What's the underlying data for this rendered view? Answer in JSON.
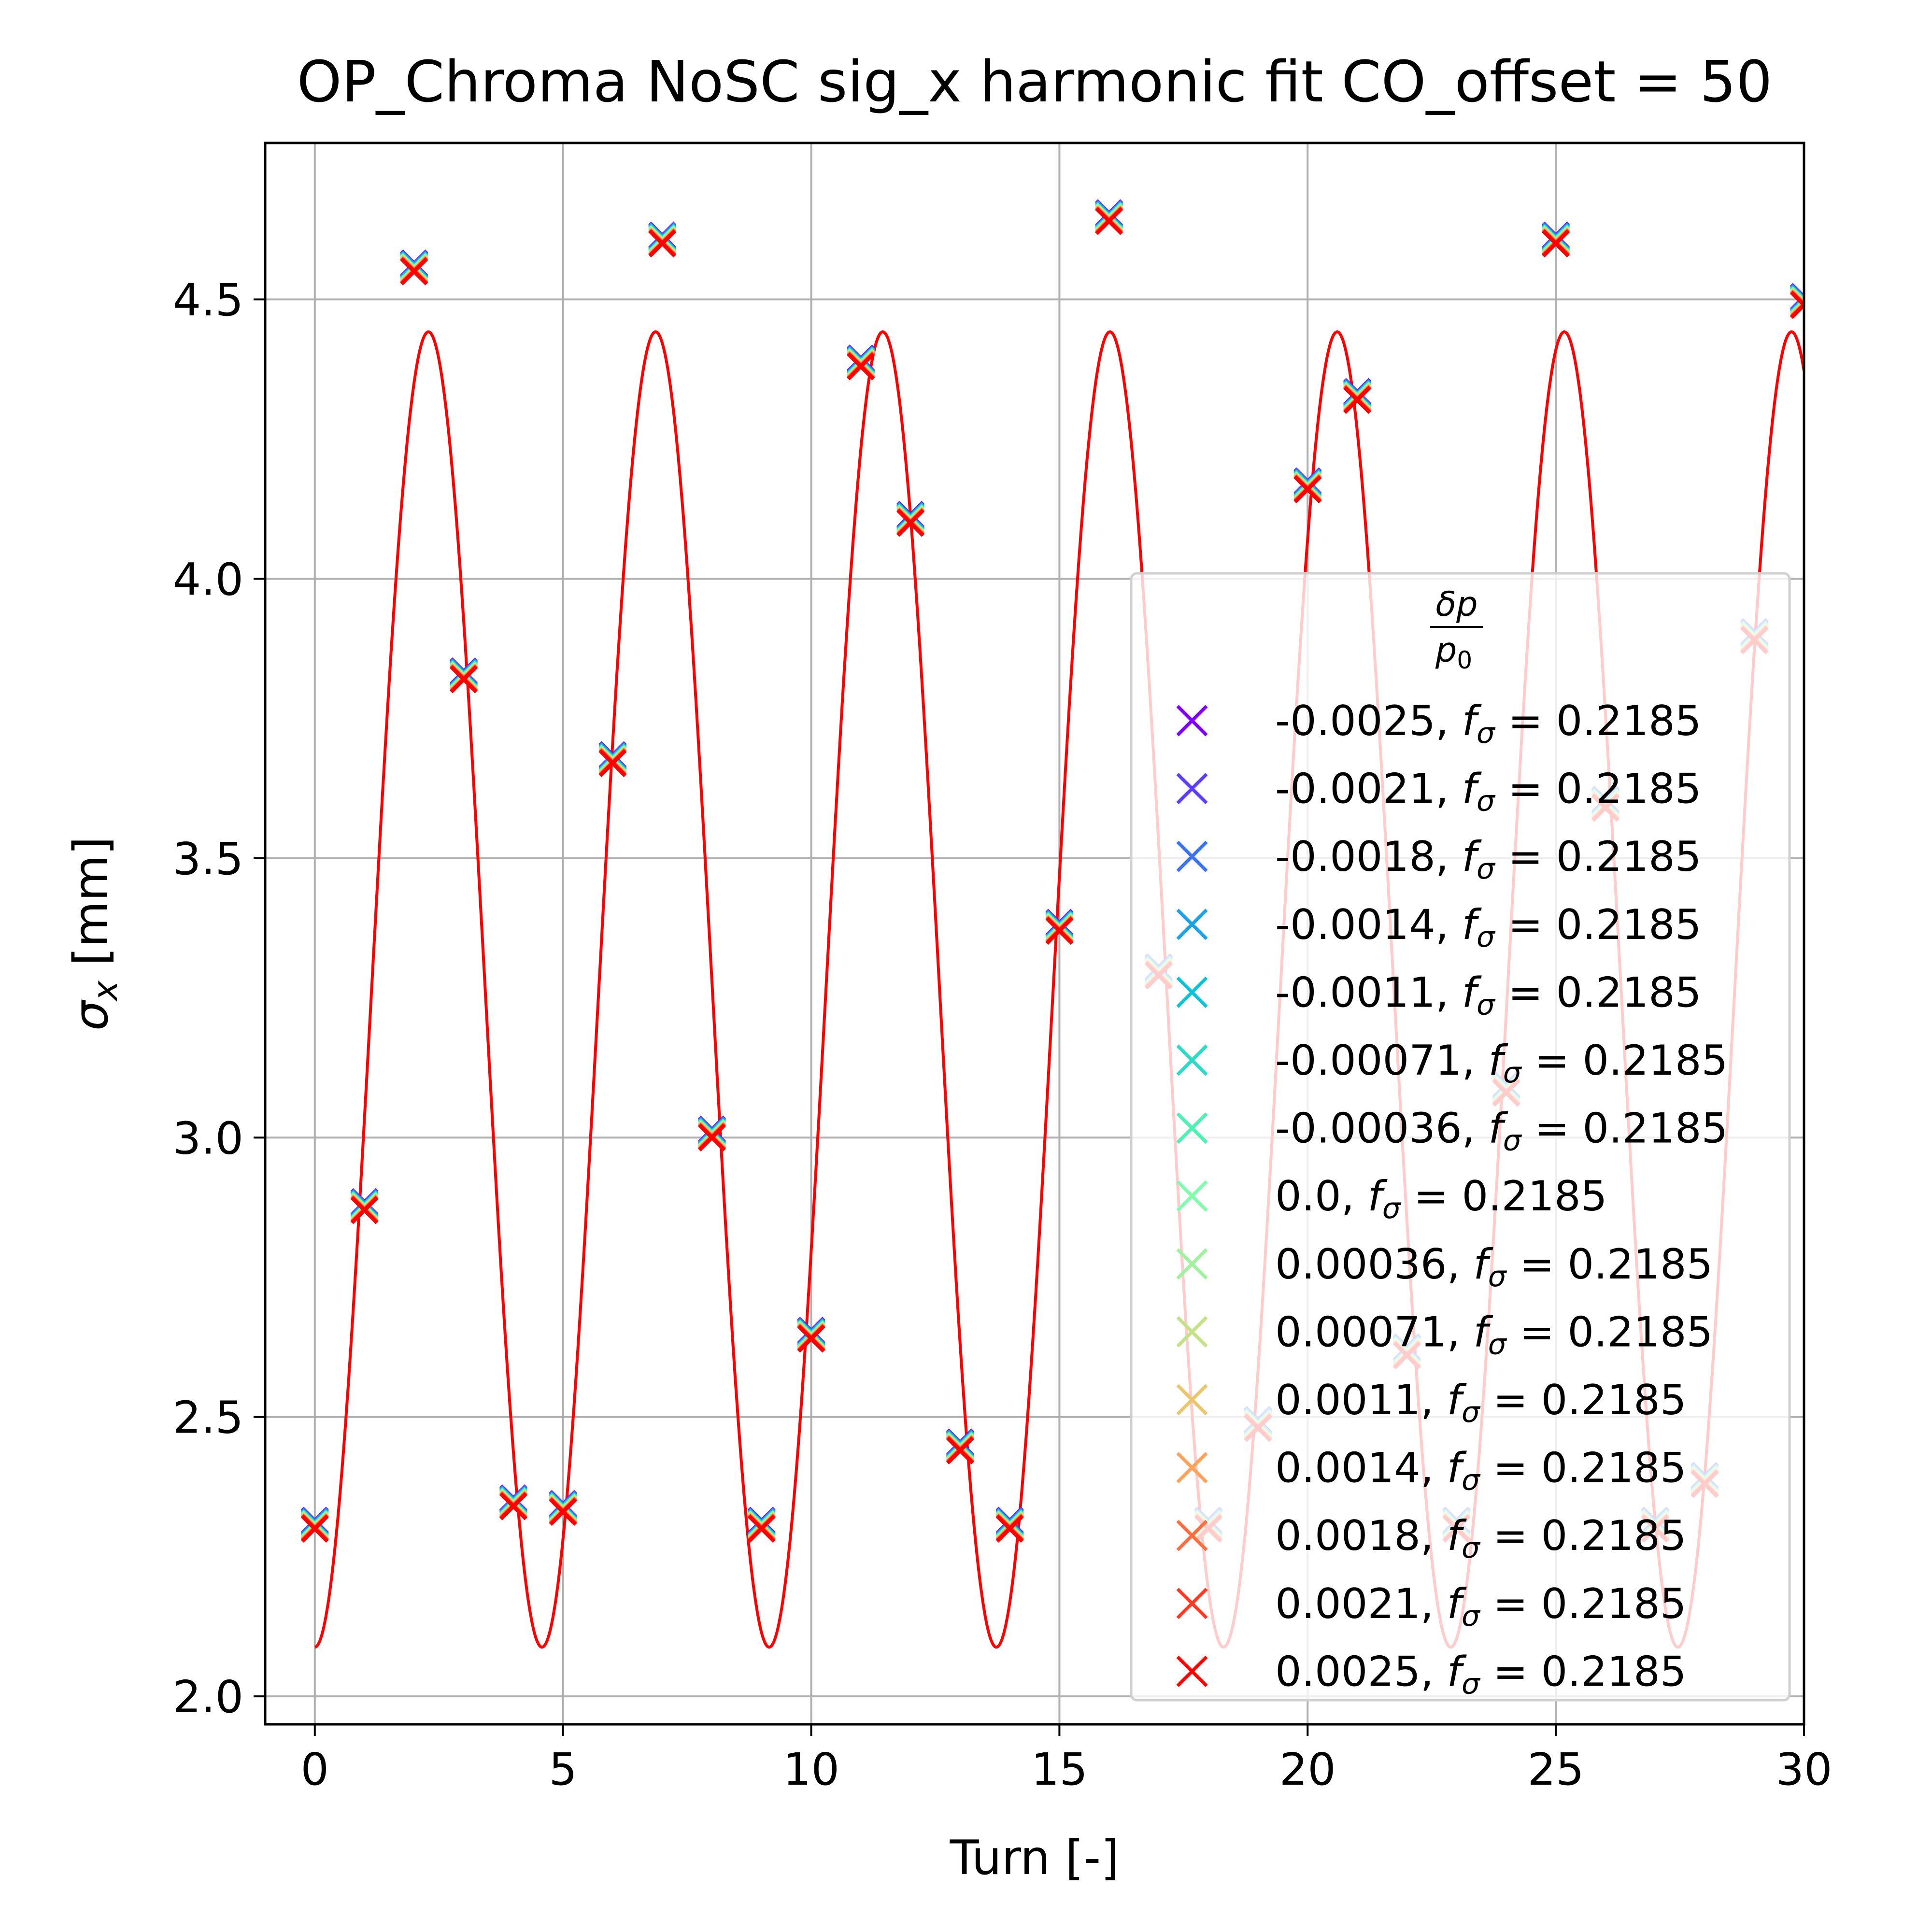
{
  "chart_data": {
    "type": "scatter",
    "title": "OP_Chroma NoSC sig_x harmonic fit CO_offset = 50",
    "xlabel": "Turn [-]",
    "ylabel_main": "σ",
    "ylabel_sub": "x",
    "ylabel_unit": " [mm]",
    "xlim": [
      -1,
      30
    ],
    "ylim": [
      1.95,
      4.78
    ],
    "xticks": [
      0,
      5,
      10,
      15,
      20,
      25,
      30
    ],
    "xtick_labels": [
      "0",
      "5",
      "10",
      "15",
      "20",
      "25",
      "30"
    ],
    "yticks": [
      2.0,
      2.5,
      3.0,
      3.5,
      4.0,
      4.5
    ],
    "ytick_labels": [
      "2.0",
      "2.5",
      "3.0",
      "3.5",
      "4.0",
      "4.5"
    ],
    "grid": true,
    "legend": {
      "placement": "lower-right",
      "title_num": "δp",
      "title_den_main": "p",
      "title_den_sub": "0",
      "f_main": "f",
      "f_sub": "σ"
    },
    "x": [
      0,
      1,
      2,
      3,
      4,
      5,
      6,
      7,
      8,
      9,
      10,
      11,
      12,
      13,
      14,
      15,
      16,
      17,
      18,
      19,
      20,
      21,
      22,
      23,
      24,
      25,
      26,
      27,
      28,
      29,
      30
    ],
    "y": [
      2.3,
      2.87,
      4.55,
      3.82,
      2.34,
      2.33,
      3.67,
      4.6,
      3.0,
      2.3,
      2.64,
      4.38,
      4.1,
      2.44,
      2.3,
      3.37,
      4.64,
      3.29,
      2.3,
      2.48,
      4.16,
      4.32,
      2.61,
      2.3,
      3.08,
      4.6,
      3.59,
      2.3,
      2.38,
      3.89,
      4.49
    ],
    "series": [
      {
        "name": "-0.0025",
        "f_value": "0.2185",
        "color": "#8000ff"
      },
      {
        "name": "-0.0021",
        "f_value": "0.2185",
        "color": "#5a3cfc"
      },
      {
        "name": "-0.0018",
        "f_value": "0.2185",
        "color": "#3a74f3"
      },
      {
        "name": "-0.0014",
        "f_value": "0.2185",
        "color": "#1ba1e6"
      },
      {
        "name": "-0.0011",
        "f_value": "0.2185",
        "color": "#0dc3d8"
      },
      {
        "name": "-0.00071",
        "f_value": "0.2185",
        "color": "#2adcc8"
      },
      {
        "name": "-0.00036",
        "f_value": "0.2185",
        "color": "#4cf2b4"
      },
      {
        "name": "0.0",
        "f_value": "0.2185",
        "color": "#7ffcac"
      },
      {
        "name": "0.00036",
        "f_value": "0.2185",
        "color": "#9ff39c"
      },
      {
        "name": "0.00071",
        "f_value": "0.2185",
        "color": "#c4e388"
      },
      {
        "name": "0.0011",
        "f_value": "0.2185",
        "color": "#ecc66f"
      },
      {
        "name": "0.0014",
        "f_value": "0.2185",
        "color": "#ffa35a"
      },
      {
        "name": "0.0018",
        "f_value": "0.2185",
        "color": "#ff6e41"
      },
      {
        "name": "0.0021",
        "f_value": "0.2185",
        "color": "#ff3a24"
      },
      {
        "name": "0.0025",
        "f_value": "0.2185",
        "color": "#ff0000"
      }
    ],
    "fit": {
      "type": "harmonic",
      "frequency_turns": 0.2185,
      "center": 3.265,
      "amplitude": 1.177,
      "phase_rad": 3.1416,
      "x_range": [
        0,
        30
      ],
      "color": "#ff0000"
    }
  }
}
